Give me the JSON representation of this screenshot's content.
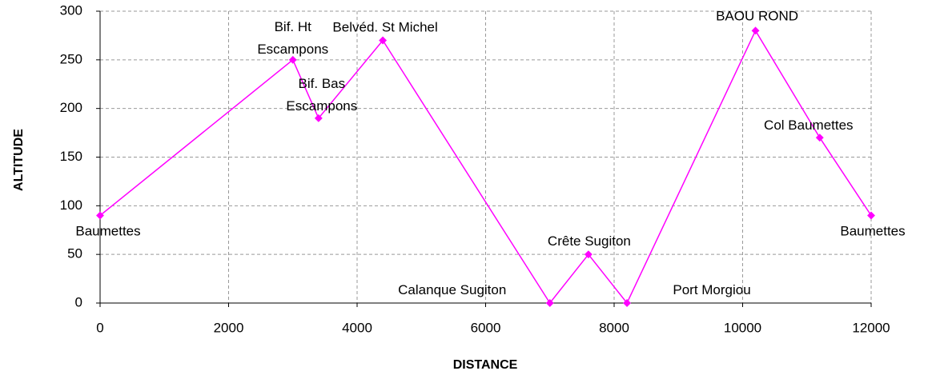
{
  "chart_data": {
    "type": "line",
    "x_label": "DISTANCE",
    "y_label": "ALTITUDE",
    "x": [
      0,
      3000,
      3400,
      4400,
      7000,
      7600,
      8200,
      10200,
      11200,
      12000
    ],
    "series": [
      {
        "color": "#ff00ff",
        "values": [
          90,
          250,
          190,
          270,
          0,
          50,
          0,
          280,
          170,
          90
        ]
      }
    ],
    "point_labels": [
      "Baumettes",
      "Bif. Ht\nEscampons",
      "Bif. Bas\nEscampons",
      "Belvéd. St Michel",
      "Calanque Sugiton",
      "Crête Sugiton",
      "Port Morgiou",
      "BAOU ROND",
      "Col Baumettes",
      "Baumettes"
    ],
    "xlim": [
      0,
      12000
    ],
    "xticks": [
      0,
      2000,
      4000,
      6000,
      8000,
      10000,
      12000
    ],
    "ylim": [
      0,
      300
    ],
    "yticks": [
      0,
      50,
      100,
      150,
      200,
      250,
      300
    ],
    "grid": true
  }
}
